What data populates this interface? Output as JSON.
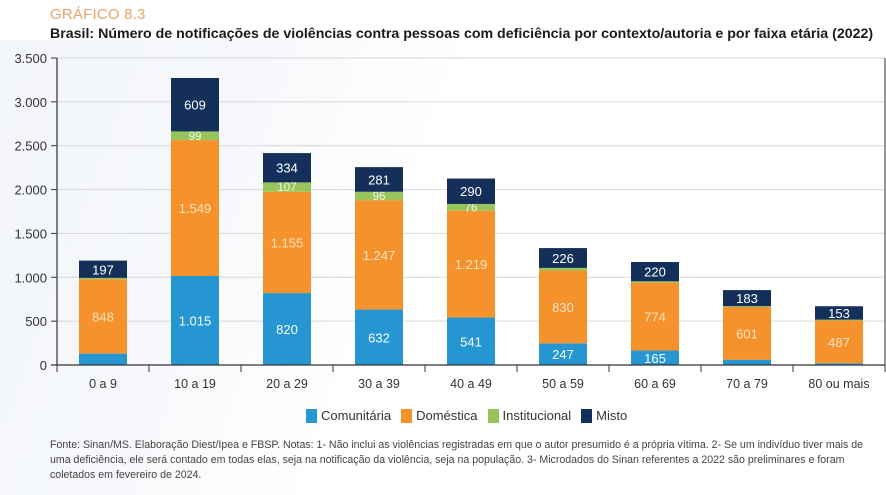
{
  "header": {
    "kicker": "GRÁFICO 8.3",
    "title": "Brasil: Número de notificações de violências contra pessoas com deficiência por contexto/autoria e por faixa etária (2022)"
  },
  "footer": {
    "note": "Fonte: Sinan/MS. Elaboração Diest/Ipea e FBSP. Notas: 1- Não inclui as violências registradas em que o autor presumido é a própria vítima. 2- Se um indivíduo tiver mais de uma deficiência, ele será contado em todas elas, seja na notificação da violência, seja na população. 3- Microdados do Sinan referentes a 2022 são preliminares e foram coletados em fevereiro de 2024."
  },
  "chart_data": {
    "type": "bar",
    "stacked": true,
    "title": "Brasil: Número de notificações de violências contra pessoas com deficiência por contexto/autoria e por faixa etária (2022)",
    "xlabel": "",
    "ylabel": "",
    "ylim": [
      0,
      3500
    ],
    "yticks": [
      0,
      500,
      1000,
      1500,
      2000,
      2500,
      3000,
      3500
    ],
    "ytick_labels": [
      "0",
      "500",
      "1.000",
      "1.500",
      "2.000",
      "2.500",
      "3.000",
      "3.500"
    ],
    "grid": true,
    "legend_position": "bottom",
    "categories": [
      "0 a 9",
      "10 a 19",
      "20 a 29",
      "30 a 39",
      "40 a 49",
      "50 a 59",
      "60 a 69",
      "70 a 79",
      "80 ou mais"
    ],
    "series": [
      {
        "name": "Comunitária",
        "color": "#2596d1",
        "values": [
          130,
          1015,
          820,
          632,
          541,
          247,
          165,
          60,
          20
        ],
        "labels": [
          "",
          "1.015",
          "820",
          "632",
          "541",
          "247",
          "165",
          "",
          ""
        ]
      },
      {
        "name": "Doméstica",
        "color": "#f5922b",
        "values": [
          848,
          1549,
          1155,
          1247,
          1219,
          830,
          774,
          601,
          487
        ],
        "labels": [
          "848",
          "1.549",
          "1.155",
          "1.247",
          "1.219",
          "830",
          "774",
          "601",
          "487"
        ]
      },
      {
        "name": "Institucional",
        "color": "#97c45b",
        "values": [
          15,
          99,
          107,
          96,
          76,
          30,
          15,
          10,
          10
        ],
        "labels": [
          "",
          "99",
          "107",
          "96",
          "76",
          "",
          "",
          "",
          ""
        ]
      },
      {
        "name": "Misto",
        "color": "#14305a",
        "values": [
          197,
          609,
          334,
          281,
          290,
          226,
          220,
          183,
          153
        ],
        "labels": [
          "197",
          "609",
          "334",
          "281",
          "290",
          "226",
          "220",
          "183",
          "153"
        ]
      }
    ]
  }
}
